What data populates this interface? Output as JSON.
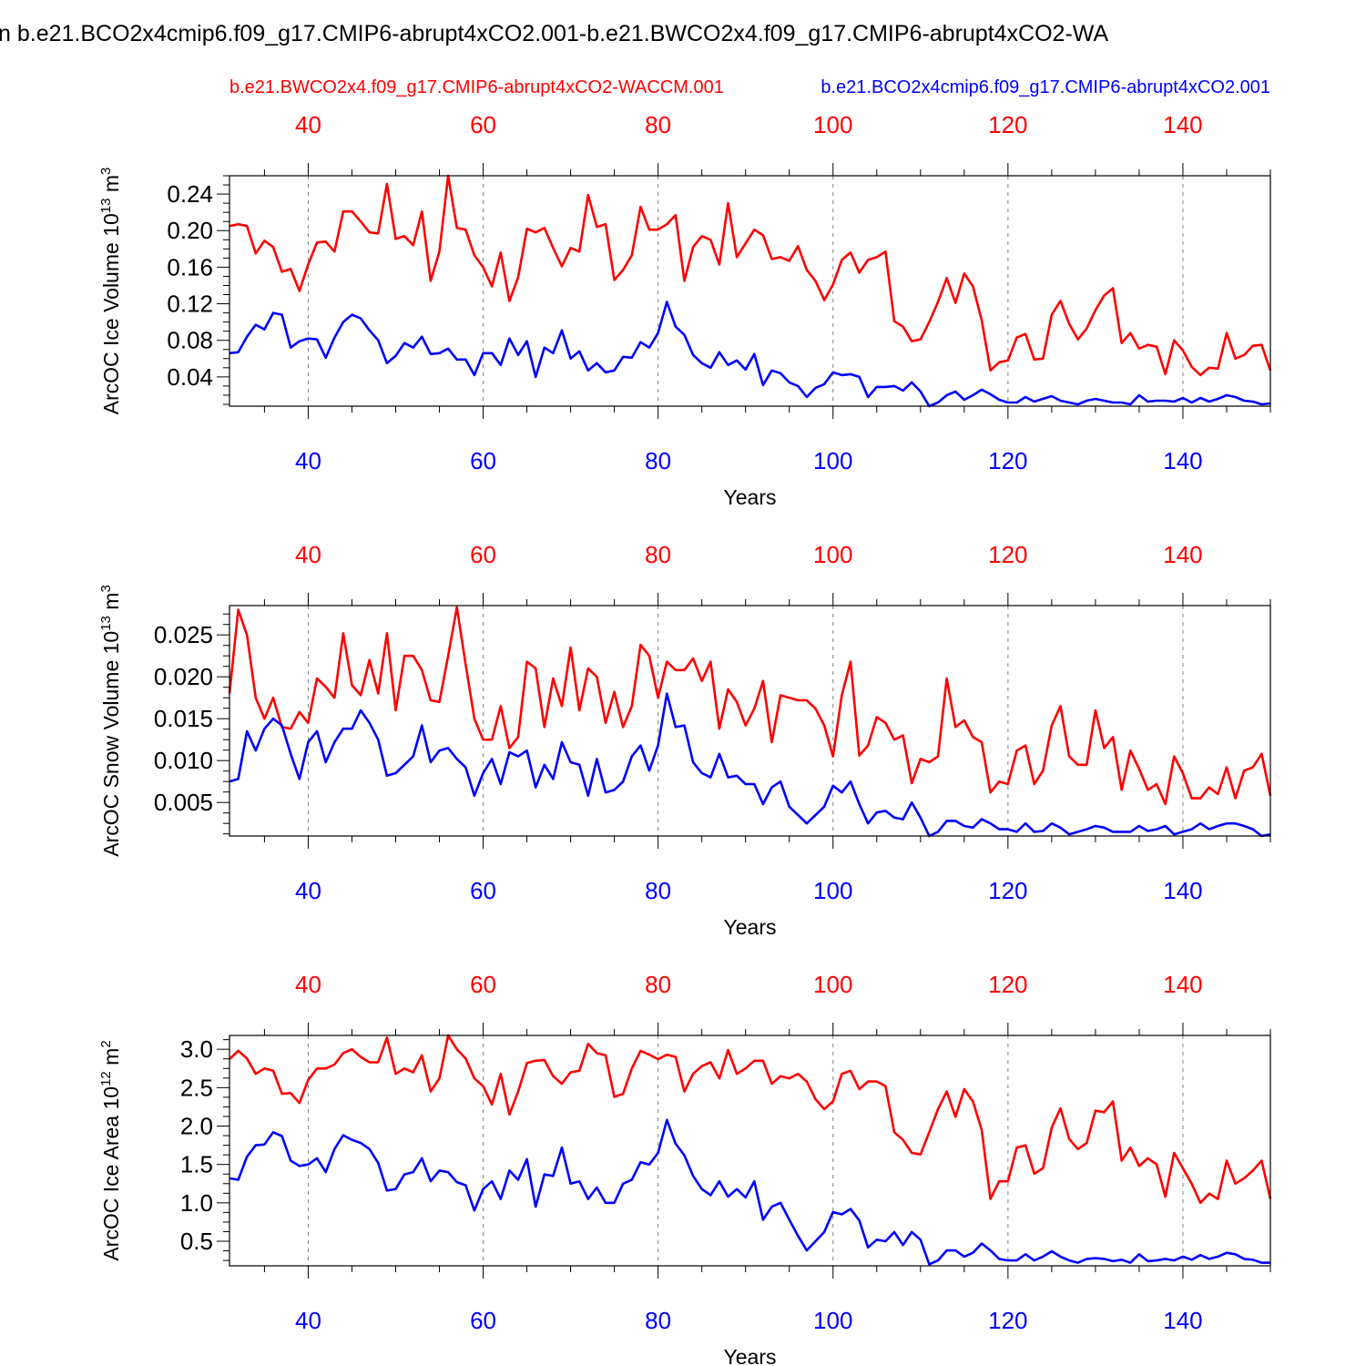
{
  "figure_title": "n b.e21.BCO2x4cmip6.f09_g17.CMIP6-abrupt4xCO2.001-b.e21.BWCO2x4.f09_g17.CMIP6-abrupt4xCO2-WA",
  "legend": {
    "case_red": "b.e21.BWCO2x4.f09_g17.CMIP6-abrupt4xCO2-WACCM.001",
    "case_blue": "b.e21.BCO2x4cmip6.f09_g17.CMIP6-abrupt4xCO2.001"
  },
  "colors": {
    "red": "#ff0000",
    "blue": "#0000ff",
    "grid": "#808080",
    "axis": "#000000"
  },
  "chart_data": [
    {
      "type": "line",
      "ylabel_main": "ArcOC Ice Volume 10",
      "ylabel_exp": "13",
      "ylabel_unit": " m",
      "ylabel_unit_exp": "3",
      "xlabel": "Years",
      "xlim": [
        31,
        150
      ],
      "ylim": [
        0.008,
        0.26
      ],
      "yticks": [
        0.04,
        0.08,
        0.12,
        0.16,
        0.2,
        0.24
      ],
      "ytick_labels": [
        "0.04",
        "0.08",
        "0.12",
        "0.16",
        "0.20",
        "0.24"
      ],
      "xticks": [
        40,
        60,
        80,
        100,
        120,
        140
      ],
      "xtick_labels": [
        "40",
        "60",
        "80",
        "100",
        "120",
        "140"
      ],
      "x_start": 31,
      "series": [
        {
          "color": "red",
          "values": [
            0.205,
            0.207,
            0.205,
            0.175,
            0.189,
            0.182,
            0.155,
            0.158,
            0.134,
            0.163,
            0.187,
            0.188,
            0.177,
            0.221,
            0.221,
            0.21,
            0.198,
            0.197,
            0.251,
            0.191,
            0.194,
            0.184,
            0.221,
            0.145,
            0.177,
            0.26,
            0.203,
            0.201,
            0.173,
            0.16,
            0.139,
            0.176,
            0.123,
            0.149,
            0.202,
            0.198,
            0.203,
            0.181,
            0.161,
            0.181,
            0.177,
            0.239,
            0.204,
            0.207,
            0.146,
            0.157,
            0.173,
            0.226,
            0.201,
            0.201,
            0.207,
            0.217,
            0.145,
            0.182,
            0.194,
            0.19,
            0.163,
            0.23,
            0.171,
            0.186,
            0.201,
            0.195,
            0.169,
            0.171,
            0.167,
            0.183,
            0.157,
            0.145,
            0.124,
            0.141,
            0.168,
            0.176,
            0.154,
            0.168,
            0.171,
            0.177,
            0.101,
            0.095,
            0.079,
            0.081,
            0.1,
            0.122,
            0.148,
            0.121,
            0.153,
            0.139,
            0.102,
            0.047,
            0.056,
            0.058,
            0.083,
            0.087,
            0.059,
            0.06,
            0.108,
            0.123,
            0.098,
            0.081,
            0.093,
            0.113,
            0.129,
            0.137,
            0.077,
            0.088,
            0.071,
            0.075,
            0.073,
            0.043,
            0.08,
            0.069,
            0.051,
            0.042,
            0.05,
            0.049,
            0.088,
            0.06,
            0.064,
            0.074,
            0.075,
            0.047
          ]
        },
        {
          "color": "blue",
          "values": [
            0.066,
            0.067,
            0.084,
            0.097,
            0.092,
            0.11,
            0.108,
            0.072,
            0.079,
            0.082,
            0.081,
            0.061,
            0.083,
            0.1,
            0.108,
            0.104,
            0.091,
            0.08,
            0.055,
            0.063,
            0.077,
            0.072,
            0.084,
            0.065,
            0.066,
            0.071,
            0.059,
            0.059,
            0.042,
            0.066,
            0.066,
            0.053,
            0.082,
            0.064,
            0.079,
            0.04,
            0.072,
            0.066,
            0.091,
            0.06,
            0.068,
            0.047,
            0.055,
            0.045,
            0.047,
            0.062,
            0.061,
            0.078,
            0.072,
            0.088,
            0.122,
            0.095,
            0.086,
            0.064,
            0.055,
            0.05,
            0.067,
            0.053,
            0.058,
            0.048,
            0.065,
            0.031,
            0.047,
            0.044,
            0.034,
            0.03,
            0.018,
            0.028,
            0.032,
            0.045,
            0.042,
            0.043,
            0.04,
            0.018,
            0.029,
            0.029,
            0.03,
            0.025,
            0.034,
            0.024,
            0.008,
            0.012,
            0.02,
            0.024,
            0.015,
            0.02,
            0.026,
            0.021,
            0.015,
            0.012,
            0.012,
            0.018,
            0.013,
            0.016,
            0.019,
            0.014,
            0.012,
            0.01,
            0.014,
            0.016,
            0.014,
            0.012,
            0.012,
            0.01,
            0.02,
            0.013,
            0.014,
            0.014,
            0.013,
            0.017,
            0.012,
            0.017,
            0.013,
            0.016,
            0.02,
            0.018,
            0.014,
            0.013,
            0.01,
            0.011
          ]
        }
      ]
    },
    {
      "type": "line",
      "ylabel_main": "ArcOC Snow Volume 10",
      "ylabel_exp": "13",
      "ylabel_unit": " m",
      "ylabel_unit_exp": "3",
      "xlabel": "Years",
      "xlim": [
        31,
        150
      ],
      "ylim": [
        0.001,
        0.0285
      ],
      "yticks": [
        0.005,
        0.01,
        0.015,
        0.02,
        0.025
      ],
      "ytick_labels": [
        "0.005",
        "0.010",
        "0.015",
        "0.020",
        "0.025"
      ],
      "xticks": [
        40,
        60,
        80,
        100,
        120,
        140
      ],
      "xtick_labels": [
        "40",
        "60",
        "80",
        "100",
        "120",
        "140"
      ],
      "x_start": 31,
      "series": [
        {
          "color": "red",
          "values": [
            0.018,
            0.028,
            0.025,
            0.0175,
            0.015,
            0.0175,
            0.014,
            0.0138,
            0.0158,
            0.0145,
            0.0198,
            0.0188,
            0.0175,
            0.0252,
            0.019,
            0.0178,
            0.022,
            0.018,
            0.0252,
            0.016,
            0.0225,
            0.0225,
            0.0208,
            0.0172,
            0.017,
            0.0225,
            0.0283,
            0.0215,
            0.015,
            0.0125,
            0.0125,
            0.0165,
            0.0115,
            0.0128,
            0.0218,
            0.021,
            0.014,
            0.0198,
            0.0165,
            0.0235,
            0.016,
            0.021,
            0.02,
            0.0145,
            0.0182,
            0.014,
            0.0165,
            0.0238,
            0.0225,
            0.0175,
            0.0218,
            0.0208,
            0.0208,
            0.0222,
            0.0195,
            0.0218,
            0.0138,
            0.0185,
            0.017,
            0.0142,
            0.0162,
            0.0195,
            0.0122,
            0.0178,
            0.0175,
            0.0172,
            0.0172,
            0.0162,
            0.0142,
            0.0105,
            0.0178,
            0.0218,
            0.0106,
            0.0118,
            0.0152,
            0.0145,
            0.0125,
            0.013,
            0.0073,
            0.0102,
            0.0098,
            0.0105,
            0.0198,
            0.014,
            0.0148,
            0.0128,
            0.0122,
            0.0062,
            0.0075,
            0.0072,
            0.0112,
            0.0118,
            0.0072,
            0.0088,
            0.0142,
            0.0165,
            0.0105,
            0.0095,
            0.0095,
            0.016,
            0.0115,
            0.0128,
            0.0065,
            0.0112,
            0.009,
            0.0065,
            0.0072,
            0.0048,
            0.0105,
            0.0085,
            0.0055,
            0.0055,
            0.0068,
            0.006,
            0.0092,
            0.0055,
            0.0088,
            0.0092,
            0.0108,
            0.0058
          ]
        },
        {
          "color": "blue",
          "values": [
            0.0075,
            0.0078,
            0.0135,
            0.0112,
            0.0138,
            0.015,
            0.0142,
            0.0108,
            0.0078,
            0.0122,
            0.0135,
            0.0098,
            0.0122,
            0.0138,
            0.0138,
            0.016,
            0.0145,
            0.0125,
            0.0082,
            0.0085,
            0.0095,
            0.0105,
            0.0142,
            0.0098,
            0.0112,
            0.0115,
            0.0102,
            0.0092,
            0.0058,
            0.0085,
            0.0102,
            0.0072,
            0.011,
            0.0105,
            0.0112,
            0.0068,
            0.0095,
            0.0078,
            0.0122,
            0.0098,
            0.0095,
            0.0058,
            0.0102,
            0.0062,
            0.0065,
            0.0075,
            0.0105,
            0.0118,
            0.0088,
            0.0118,
            0.018,
            0.014,
            0.0142,
            0.0098,
            0.0085,
            0.008,
            0.0108,
            0.008,
            0.0082,
            0.0072,
            0.0072,
            0.0048,
            0.0068,
            0.0075,
            0.0045,
            0.0035,
            0.0025,
            0.0035,
            0.0045,
            0.007,
            0.0062,
            0.0075,
            0.0048,
            0.0025,
            0.0038,
            0.004,
            0.0032,
            0.003,
            0.005,
            0.0032,
            0.001,
            0.0015,
            0.0028,
            0.0028,
            0.0022,
            0.002,
            0.003,
            0.0025,
            0.0018,
            0.0018,
            0.0015,
            0.0025,
            0.0015,
            0.0016,
            0.0025,
            0.002,
            0.0012,
            0.0015,
            0.0018,
            0.0022,
            0.002,
            0.0015,
            0.0015,
            0.0015,
            0.0022,
            0.0016,
            0.0018,
            0.0022,
            0.0012,
            0.0015,
            0.0018,
            0.0025,
            0.0018,
            0.0022,
            0.0025,
            0.0025,
            0.0022,
            0.0018,
            0.001,
            0.0012
          ]
        }
      ]
    },
    {
      "type": "line",
      "ylabel_main": "ArcOC Ice Area 10",
      "ylabel_exp": "12",
      "ylabel_unit": " m",
      "ylabel_unit_exp": "2",
      "xlabel": "Years",
      "xlim": [
        31,
        150
      ],
      "ylim": [
        0.18,
        3.18
      ],
      "yticks": [
        0.5,
        1.0,
        1.5,
        2.0,
        2.5,
        3.0
      ],
      "ytick_labels": [
        "0.5",
        "1.0",
        "1.5",
        "2.0",
        "2.5",
        "3.0"
      ],
      "xticks": [
        40,
        60,
        80,
        100,
        120,
        140
      ],
      "xtick_labels": [
        "40",
        "60",
        "80",
        "100",
        "120",
        "140"
      ],
      "x_start": 31,
      "series": [
        {
          "color": "red",
          "values": [
            2.87,
            2.98,
            2.88,
            2.68,
            2.75,
            2.72,
            2.42,
            2.43,
            2.3,
            2.6,
            2.75,
            2.75,
            2.8,
            2.95,
            3.0,
            2.9,
            2.83,
            2.83,
            3.15,
            2.68,
            2.75,
            2.7,
            2.92,
            2.45,
            2.62,
            3.18,
            3.0,
            2.88,
            2.62,
            2.52,
            2.28,
            2.68,
            2.15,
            2.45,
            2.82,
            2.85,
            2.86,
            2.65,
            2.55,
            2.7,
            2.72,
            3.07,
            2.95,
            2.92,
            2.38,
            2.42,
            2.75,
            2.98,
            2.93,
            2.87,
            2.93,
            2.9,
            2.45,
            2.68,
            2.78,
            2.83,
            2.62,
            2.99,
            2.68,
            2.75,
            2.85,
            2.85,
            2.55,
            2.65,
            2.62,
            2.68,
            2.58,
            2.35,
            2.22,
            2.32,
            2.68,
            2.72,
            2.48,
            2.58,
            2.58,
            2.52,
            1.92,
            1.82,
            1.65,
            1.63,
            1.92,
            2.22,
            2.45,
            2.12,
            2.48,
            2.32,
            1.95,
            1.05,
            1.28,
            1.28,
            1.72,
            1.75,
            1.38,
            1.45,
            1.98,
            2.23,
            1.83,
            1.7,
            1.78,
            2.2,
            2.18,
            2.32,
            1.55,
            1.72,
            1.48,
            1.58,
            1.5,
            1.08,
            1.65,
            1.45,
            1.25,
            1.0,
            1.12,
            1.05,
            1.55,
            1.25,
            1.32,
            1.42,
            1.55,
            1.05
          ]
        },
        {
          "color": "blue",
          "values": [
            1.32,
            1.3,
            1.6,
            1.75,
            1.76,
            1.92,
            1.87,
            1.55,
            1.48,
            1.5,
            1.58,
            1.4,
            1.7,
            1.88,
            1.82,
            1.78,
            1.7,
            1.52,
            1.16,
            1.18,
            1.37,
            1.4,
            1.58,
            1.28,
            1.42,
            1.4,
            1.27,
            1.23,
            0.9,
            1.18,
            1.28,
            1.05,
            1.42,
            1.3,
            1.57,
            0.95,
            1.37,
            1.35,
            1.72,
            1.25,
            1.28,
            1.05,
            1.2,
            1.0,
            1.0,
            1.25,
            1.3,
            1.53,
            1.5,
            1.65,
            2.08,
            1.77,
            1.62,
            1.35,
            1.18,
            1.1,
            1.28,
            1.08,
            1.18,
            1.07,
            1.28,
            0.78,
            0.95,
            1.0,
            0.78,
            0.57,
            0.38,
            0.5,
            0.62,
            0.88,
            0.85,
            0.92,
            0.77,
            0.42,
            0.52,
            0.5,
            0.62,
            0.45,
            0.62,
            0.52,
            0.2,
            0.25,
            0.38,
            0.38,
            0.3,
            0.35,
            0.47,
            0.38,
            0.27,
            0.25,
            0.25,
            0.33,
            0.25,
            0.3,
            0.37,
            0.3,
            0.25,
            0.22,
            0.27,
            0.28,
            0.27,
            0.24,
            0.26,
            0.22,
            0.33,
            0.24,
            0.25,
            0.27,
            0.25,
            0.3,
            0.26,
            0.32,
            0.27,
            0.3,
            0.35,
            0.33,
            0.27,
            0.26,
            0.22,
            0.22
          ]
        }
      ]
    }
  ]
}
